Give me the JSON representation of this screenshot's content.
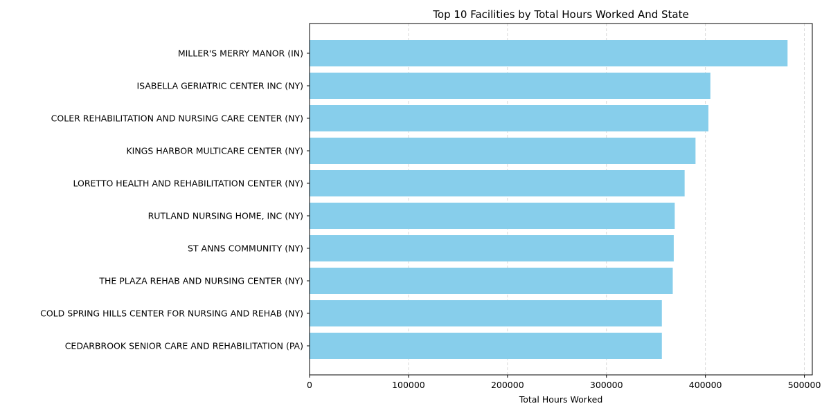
{
  "chart_data": {
    "type": "bar",
    "orientation": "horizontal",
    "title": "Top 10 Facilities by Total Hours Worked And State",
    "xlabel": "Total Hours Worked",
    "ylabel": "",
    "xlim": [
      0,
      508000
    ],
    "xticks": [
      0,
      100000,
      200000,
      300000,
      400000,
      500000
    ],
    "xtick_labels": [
      "0",
      "100000",
      "200000",
      "300000",
      "400000",
      "500000"
    ],
    "grid": "x-dashed",
    "bar_color": "#87ceeb",
    "categories": [
      "MILLER'S MERRY MANOR (IN)",
      "ISABELLA GERIATRIC CENTER INC (NY)",
      "COLER REHABILITATION AND NURSING CARE CENTER (NY)",
      "KINGS HARBOR MULTICARE CENTER (NY)",
      "LORETTO HEALTH AND REHABILITATION CENTER (NY)",
      "RUTLAND NURSING HOME, INC (NY)",
      "ST ANNS COMMUNITY (NY)",
      "THE PLAZA REHAB AND NURSING CENTER (NY)",
      "COLD SPRING HILLS CENTER FOR NURSING AND REHAB (NY)",
      "CEDARBROOK SENIOR CARE AND REHABILITATION (PA)"
    ],
    "values": [
      483000,
      405000,
      403000,
      390000,
      379000,
      369000,
      368000,
      367000,
      356000,
      356000
    ]
  }
}
